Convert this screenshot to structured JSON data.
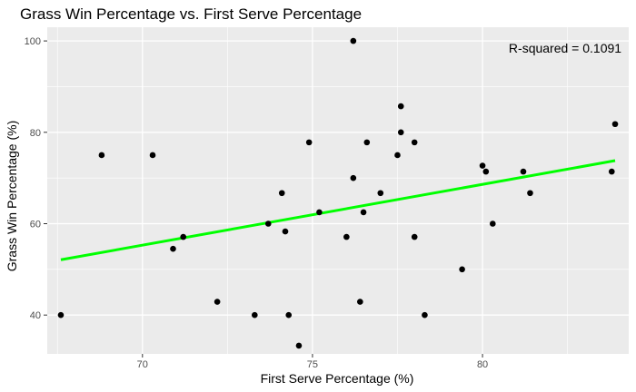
{
  "chart_data": {
    "type": "scatter",
    "title": "Grass Win Percentage vs. First Serve Percentage",
    "xlabel": "First Serve Percentage (%)",
    "ylabel": "Grass Win Percentage (%)",
    "xlim": [
      67.2,
      84.3
    ],
    "ylim": [
      31.5,
      103
    ],
    "xticks": [
      70,
      75,
      80
    ],
    "yticks": [
      40,
      60,
      80,
      100
    ],
    "grid": true,
    "annotation": "R-squared = 0.1091",
    "points": [
      {
        "x": 67.6,
        "y": 40
      },
      {
        "x": 68.8,
        "y": 75
      },
      {
        "x": 70.3,
        "y": 75
      },
      {
        "x": 70.9,
        "y": 54.5
      },
      {
        "x": 71.2,
        "y": 57.1
      },
      {
        "x": 72.2,
        "y": 42.9
      },
      {
        "x": 73.3,
        "y": 40
      },
      {
        "x": 73.7,
        "y": 60
      },
      {
        "x": 74.1,
        "y": 66.7
      },
      {
        "x": 74.2,
        "y": 58.3
      },
      {
        "x": 74.3,
        "y": 40
      },
      {
        "x": 74.6,
        "y": 33.3
      },
      {
        "x": 74.9,
        "y": 77.8
      },
      {
        "x": 75.2,
        "y": 62.5
      },
      {
        "x": 76.0,
        "y": 57.1
      },
      {
        "x": 76.2,
        "y": 100
      },
      {
        "x": 76.2,
        "y": 70
      },
      {
        "x": 76.4,
        "y": 42.9
      },
      {
        "x": 76.5,
        "y": 62.5
      },
      {
        "x": 76.6,
        "y": 77.8
      },
      {
        "x": 77.0,
        "y": 66.7
      },
      {
        "x": 77.5,
        "y": 75
      },
      {
        "x": 77.6,
        "y": 85.7
      },
      {
        "x": 77.6,
        "y": 80
      },
      {
        "x": 78.0,
        "y": 77.8
      },
      {
        "x": 78.0,
        "y": 57.1
      },
      {
        "x": 78.3,
        "y": 40
      },
      {
        "x": 79.4,
        "y": 50
      },
      {
        "x": 80.0,
        "y": 72.7
      },
      {
        "x": 80.1,
        "y": 71.4
      },
      {
        "x": 80.3,
        "y": 60
      },
      {
        "x": 81.2,
        "y": 71.4
      },
      {
        "x": 81.4,
        "y": 66.7
      },
      {
        "x": 83.8,
        "y": 71.4
      },
      {
        "x": 83.9,
        "y": 81.8
      }
    ],
    "trendline": {
      "color": "#00ff00",
      "x": [
        67.6,
        83.9
      ],
      "y": [
        52.1,
        73.8
      ]
    },
    "colors": {
      "panel": "#ebebeb",
      "grid": "#ffffff",
      "point": "#000000"
    }
  }
}
